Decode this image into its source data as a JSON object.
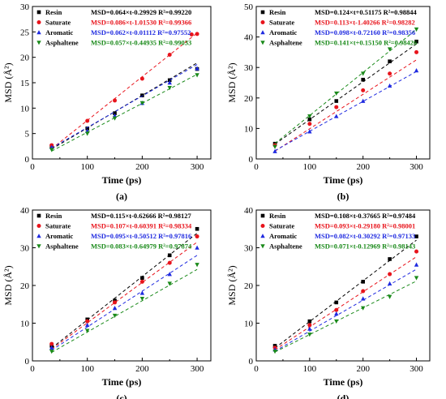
{
  "chart_data": [
    {
      "type": "scatter",
      "panel_label": "(a)",
      "xlabel": "Time (ps)",
      "ylabel": "MSD (Å²)",
      "xlim": [
        0,
        325
      ],
      "ylim": [
        0,
        30
      ],
      "xticks": [
        0,
        100,
        200,
        300
      ],
      "yticks": [
        0,
        5,
        10,
        15,
        20,
        25,
        30
      ],
      "legend_position": "top-left",
      "series": [
        {
          "name": "Resin",
          "marker": "square",
          "color": "#000000",
          "equation": "MSD=0.064×t-0.29929 R²=0.99220",
          "slope": 0.064,
          "intercept": -0.29929,
          "x": [
            35,
            100,
            150,
            200,
            250,
            300
          ],
          "y": [
            2.5,
            6.0,
            9.0,
            12.5,
            15.5,
            17.7
          ]
        },
        {
          "name": "Saturate",
          "marker": "circle",
          "color": "#e8141c",
          "equation": "MSD=0.086×t-1.01530 R²=0.99366",
          "slope": 0.086,
          "intercept": -1.0153,
          "x": [
            35,
            100,
            150,
            200,
            250,
            290,
            300
          ],
          "y": [
            2.7,
            7.5,
            11.5,
            15.8,
            20.5,
            24.5,
            24.6
          ]
        },
        {
          "name": "Aromatic",
          "marker": "triangle-up",
          "color": "#1f2ae0",
          "equation": "MSD=0.062×t-0.01112 R²=0.97552",
          "slope": 0.062,
          "intercept": -0.01112,
          "x": [
            35,
            100,
            150,
            200,
            250,
            300
          ],
          "y": [
            2.3,
            5.5,
            8.5,
            11.0,
            15.0,
            17.8
          ]
        },
        {
          "name": "Asphaltene",
          "marker": "triangle-down",
          "color": "#1a8a1a",
          "equation": "MSD=0.057×t-0.44935 R²=0.99033",
          "slope": 0.057,
          "intercept": -0.44935,
          "x": [
            35,
            100,
            150,
            200,
            250,
            300
          ],
          "y": [
            1.8,
            5.0,
            8.0,
            11.0,
            14.0,
            16.5
          ]
        }
      ]
    },
    {
      "type": "scatter",
      "panel_label": "(b)",
      "xlabel": "Time (ps)",
      "ylabel": "MSD (Å²)",
      "xlim": [
        0,
        325
      ],
      "ylim": [
        0,
        50
      ],
      "xticks": [
        0,
        100,
        200,
        300
      ],
      "yticks": [
        0,
        10,
        20,
        30,
        40,
        50
      ],
      "legend_position": "top-left",
      "series": [
        {
          "name": "Resin",
          "marker": "square",
          "color": "#000000",
          "equation": "MSD=0.124×t+0.51175 R²=0.98844",
          "slope": 0.124,
          "intercept": 0.51175,
          "x": [
            35,
            100,
            150,
            200,
            250,
            300
          ],
          "y": [
            5.0,
            13.0,
            19.0,
            26.0,
            32.0,
            38.5
          ]
        },
        {
          "name": "Saturate",
          "marker": "circle",
          "color": "#e8141c",
          "equation": "MSD=0.113×t-1.40266 R²=0.98282",
          "slope": 0.113,
          "intercept": -1.40266,
          "x": [
            35,
            100,
            150,
            200,
            250,
            300
          ],
          "y": [
            4.5,
            11.5,
            17.0,
            22.5,
            28.0,
            35.0
          ]
        },
        {
          "name": "Aromatic",
          "marker": "triangle-up",
          "color": "#1f2ae0",
          "equation": "MSD=0.098×t-0.72160 R²=0.98356",
          "slope": 0.098,
          "intercept": -0.7216,
          "x": [
            35,
            100,
            150,
            200,
            250,
            300
          ],
          "y": [
            2.5,
            9.0,
            14.0,
            19.0,
            24.0,
            29.0
          ]
        },
        {
          "name": "Asphaltene",
          "marker": "triangle-down",
          "color": "#1a8a1a",
          "equation": "MSD=0.141×t+0.15150 R²=0.98426",
          "slope": 0.141,
          "intercept": 0.1515,
          "x": [
            35,
            100,
            150,
            200,
            250,
            300
          ],
          "y": [
            4.0,
            14.0,
            21.5,
            28.0,
            36.0,
            42.5
          ]
        }
      ]
    },
    {
      "type": "scatter",
      "panel_label": "(c)",
      "xlabel": "Time (ps)",
      "ylabel": "MSD (Å²)",
      "xlim": [
        0,
        325
      ],
      "ylim": [
        0,
        40
      ],
      "xticks": [
        0,
        100,
        200,
        300
      ],
      "yticks": [
        0,
        10,
        20,
        30,
        40
      ],
      "legend_position": "top-left",
      "series": [
        {
          "name": "Resin",
          "marker": "square",
          "color": "#000000",
          "equation": "MSD=0.115×t-0.62666 R²=0.98127",
          "slope": 0.115,
          "intercept": -0.62666,
          "x": [
            35,
            100,
            150,
            200,
            250,
            300
          ],
          "y": [
            4.0,
            11.0,
            16.0,
            22.0,
            28.0,
            35.0
          ]
        },
        {
          "name": "Saturate",
          "marker": "circle",
          "color": "#e8141c",
          "equation": "MSD=0.107×t-0.60391 R²=0.98334",
          "slope": 0.107,
          "intercept": -0.60391,
          "x": [
            35,
            100,
            150,
            200,
            250,
            300
          ],
          "y": [
            4.5,
            10.5,
            15.5,
            21.0,
            26.0,
            33.0
          ]
        },
        {
          "name": "Aromatic",
          "marker": "triangle-up",
          "color": "#1f2ae0",
          "equation": "MSD=0.095×t-0.50512 R²=0.97816",
          "slope": 0.095,
          "intercept": -0.50512,
          "x": [
            35,
            100,
            150,
            200,
            250,
            300
          ],
          "y": [
            3.5,
            9.5,
            14.0,
            18.0,
            23.0,
            30.0
          ]
        },
        {
          "name": "Asphaltene",
          "marker": "triangle-down",
          "color": "#1a8a1a",
          "equation": "MSD=0.083×t-0.64979 R²=0.97874",
          "slope": 0.083,
          "intercept": -0.64979,
          "x": [
            35,
            100,
            150,
            200,
            250,
            300
          ],
          "y": [
            2.5,
            8.0,
            12.0,
            16.5,
            20.5,
            25.5
          ]
        }
      ]
    },
    {
      "type": "scatter",
      "panel_label": "(d)",
      "xlabel": "Time (ps)",
      "ylabel": "MSD (Å²)",
      "xlim": [
        0,
        325
      ],
      "ylim": [
        0,
        40
      ],
      "xticks": [
        0,
        100,
        200,
        300
      ],
      "yticks": [
        0,
        10,
        20,
        30,
        40
      ],
      "legend_position": "top-left",
      "series": [
        {
          "name": "Resin",
          "marker": "square",
          "color": "#000000",
          "equation": "MSD=0.108×t-0.37665 R²=0.97484",
          "slope": 0.108,
          "intercept": -0.37665,
          "x": [
            35,
            100,
            150,
            200,
            250,
            300
          ],
          "y": [
            4.0,
            10.5,
            15.5,
            21.0,
            27.0,
            33.0
          ]
        },
        {
          "name": "Saturate",
          "marker": "circle",
          "color": "#e8141c",
          "equation": "MSD=0.093×t-0.29180 R²=0.98001",
          "slope": 0.093,
          "intercept": -0.2918,
          "x": [
            35,
            100,
            150,
            200,
            250,
            300
          ],
          "y": [
            3.5,
            9.5,
            13.5,
            18.5,
            23.0,
            29.0
          ]
        },
        {
          "name": "Aromatic",
          "marker": "triangle-up",
          "color": "#1f2ae0",
          "equation": "MSD=0.082×t-0.30292 R²=0.97133",
          "slope": 0.082,
          "intercept": -0.30292,
          "x": [
            35,
            100,
            150,
            200,
            250,
            300
          ],
          "y": [
            3.0,
            8.5,
            12.5,
            16.5,
            20.5,
            25.5
          ]
        },
        {
          "name": "Asphaltene",
          "marker": "triangle-down",
          "color": "#1a8a1a",
          "equation": "MSD=0.071×t-0.12969 R²=0.98143",
          "slope": 0.071,
          "intercept": -0.12969,
          "x": [
            35,
            100,
            150,
            200,
            250,
            300
          ],
          "y": [
            2.5,
            7.0,
            10.5,
            14.0,
            17.0,
            22.0
          ]
        }
      ]
    }
  ]
}
